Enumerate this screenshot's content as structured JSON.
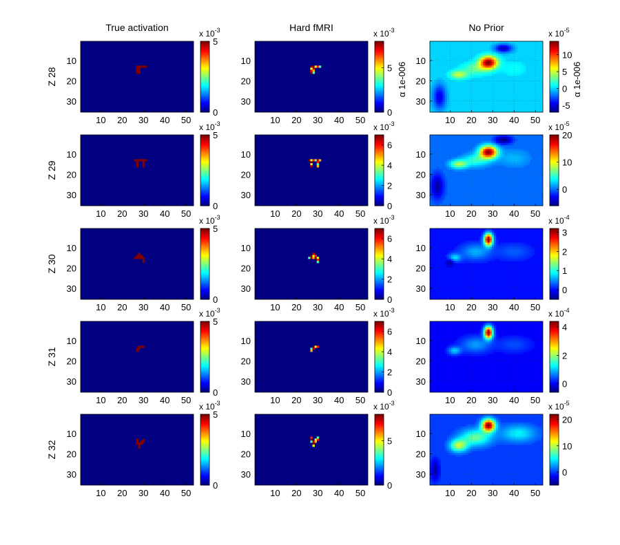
{
  "figure": {
    "background": "#ffffff",
    "colormap": "jet"
  },
  "chart_data": [
    {
      "type": "heatmap",
      "panel": "r0c0",
      "title": "True activation",
      "ylabel_row": "Z 28",
      "xticks": [
        10,
        20,
        30,
        40,
        50
      ],
      "yticks": [
        10,
        20,
        30
      ],
      "xlim": [
        0.5,
        53.5
      ],
      "ylim": [
        0.5,
        35.5
      ],
      "colorbar": {
        "ticks": [
          {
            "v": 0,
            "t": "0"
          },
          {
            "v": 5,
            "t": "5"
          }
        ],
        "exponent_base": "x 10",
        "exponent": "-3",
        "label": "",
        "cmin": 0,
        "cmax": 5
      },
      "blobs": [
        {
          "x": 28,
          "y": 13,
          "rx": 3,
          "ry": 3,
          "v": 5
        }
      ],
      "shape": "L"
    },
    {
      "type": "heatmap",
      "panel": "r0c1",
      "title": "Hard fMRI",
      "xticks": [
        10,
        20,
        30,
        40,
        50
      ],
      "yticks": [
        10,
        20,
        30
      ],
      "xlim": [
        0.5,
        53.5
      ],
      "ylim": [
        0.5,
        35.5
      ],
      "colorbar": {
        "ticks": [
          {
            "v": 0,
            "t": "0"
          },
          {
            "v": 5,
            "t": "5"
          }
        ],
        "exponent_base": "x 10",
        "exponent": "-3",
        "label": "α  1e-006",
        "cmin": 0,
        "cmax": 8
      },
      "blobs": [
        {
          "x": 28,
          "y": 13,
          "v": 6
        }
      ],
      "shape": "L"
    },
    {
      "type": "heatmap",
      "panel": "r0c2",
      "title": "No Prior",
      "xticks": [
        10,
        20,
        30,
        40,
        50
      ],
      "yticks": [
        10,
        20,
        30
      ],
      "xlim": [
        0.5,
        53.5
      ],
      "ylim": [
        0.5,
        35.5
      ],
      "colorbar": {
        "ticks": [
          {
            "v": -5,
            "t": "-5"
          },
          {
            "v": 0,
            "t": "0"
          },
          {
            "v": 5,
            "t": "5"
          },
          {
            "v": 10,
            "t": "10"
          }
        ],
        "exponent_base": "x 10",
        "exponent": "-5",
        "label": "α  1e-006",
        "cmin": -7,
        "cmax": 14
      },
      "smooth": true,
      "blobs": [
        {
          "x": 28,
          "y": 11,
          "rx": 4,
          "ry": 3,
          "v": 14
        },
        {
          "x": 14,
          "y": 17,
          "rx": 4,
          "ry": 2,
          "v": 5
        },
        {
          "x": 22,
          "y": 14,
          "rx": 6,
          "ry": 3,
          "v": 3
        },
        {
          "x": 40,
          "y": 14,
          "rx": 6,
          "ry": 4,
          "v": 1
        },
        {
          "x": 35,
          "y": 4,
          "rx": 4,
          "ry": 2,
          "v": -6
        },
        {
          "x": 5,
          "y": 28,
          "rx": 3,
          "ry": 6,
          "v": -5
        }
      ]
    },
    {
      "type": "heatmap",
      "panel": "r1c0",
      "ylabel_row": "Z 29",
      "xticks": [
        10,
        20,
        30,
        40,
        50
      ],
      "yticks": [
        10,
        20,
        30
      ],
      "xlim": [
        0.5,
        53.5
      ],
      "ylim": [
        0.5,
        35.5
      ],
      "colorbar": {
        "ticks": [
          {
            "v": 0,
            "t": "0"
          },
          {
            "v": 5,
            "t": "5"
          }
        ],
        "exponent_base": "x 10",
        "exponent": "-3",
        "label": "",
        "cmin": 0,
        "cmax": 5
      },
      "blobs": [
        {
          "x": 28,
          "y": 13,
          "v": 5
        }
      ],
      "shape": "pi"
    },
    {
      "type": "heatmap",
      "panel": "r1c1",
      "xticks": [
        10,
        20,
        30,
        40,
        50
      ],
      "yticks": [
        10,
        20,
        30
      ],
      "xlim": [
        0.5,
        53.5
      ],
      "ylim": [
        0.5,
        35.5
      ],
      "colorbar": {
        "ticks": [
          {
            "v": 0,
            "t": "0"
          },
          {
            "v": 2,
            "t": "2"
          },
          {
            "v": 4,
            "t": "4"
          },
          {
            "v": 6,
            "t": "6"
          }
        ],
        "exponent_base": "x 10",
        "exponent": "-3",
        "label": "",
        "cmin": 0,
        "cmax": 7
      },
      "blobs": [
        {
          "x": 28,
          "y": 13,
          "v": 6
        }
      ],
      "shape": "pi"
    },
    {
      "type": "heatmap",
      "panel": "r1c2",
      "xticks": [
        10,
        20,
        30,
        40,
        50
      ],
      "yticks": [
        10,
        20,
        30
      ],
      "xlim": [
        0.5,
        53.5
      ],
      "ylim": [
        0.5,
        35.5
      ],
      "colorbar": {
        "ticks": [
          {
            "v": 0,
            "t": "0"
          },
          {
            "v": 10,
            "t": "10"
          },
          {
            "v": 20,
            "t": "20"
          }
        ],
        "exponent_base": "x 10",
        "exponent": "-5",
        "label": "",
        "cmin": -6,
        "cmax": 20
      },
      "smooth": true,
      "blobs": [
        {
          "x": 28,
          "y": 9,
          "rx": 4,
          "ry": 3,
          "v": 20
        },
        {
          "x": 14,
          "y": 15,
          "rx": 4,
          "ry": 2,
          "v": 8
        },
        {
          "x": 22,
          "y": 13,
          "rx": 6,
          "ry": 3,
          "v": 5
        },
        {
          "x": 40,
          "y": 12,
          "rx": 7,
          "ry": 4,
          "v": 2
        },
        {
          "x": 35,
          "y": 3,
          "rx": 4,
          "ry": 2,
          "v": -6
        },
        {
          "x": 4,
          "y": 26,
          "rx": 3,
          "ry": 6,
          "v": -5
        }
      ]
    },
    {
      "type": "heatmap",
      "panel": "r2c0",
      "ylabel_row": "Z 30",
      "xticks": [
        10,
        20,
        30,
        40,
        50
      ],
      "yticks": [
        10,
        20,
        30
      ],
      "xlim": [
        0.5,
        53.5
      ],
      "ylim": [
        0.5,
        35.5
      ],
      "colorbar": {
        "ticks": [
          {
            "v": 0,
            "t": "0"
          },
          {
            "v": 5,
            "t": "5"
          }
        ],
        "exponent_base": "x 10",
        "exponent": "-3",
        "label": "",
        "cmin": 0,
        "cmax": 5
      },
      "blobs": [
        {
          "x": 28,
          "y": 14,
          "v": 5
        }
      ],
      "shape": "blob"
    },
    {
      "type": "heatmap",
      "panel": "r2c1",
      "xticks": [
        10,
        20,
        30,
        40,
        50
      ],
      "yticks": [
        10,
        20,
        30
      ],
      "xlim": [
        0.5,
        53.5
      ],
      "ylim": [
        0.5,
        35.5
      ],
      "colorbar": {
        "ticks": [
          {
            "v": 0,
            "t": "0"
          },
          {
            "v": 2,
            "t": "2"
          },
          {
            "v": 4,
            "t": "4"
          },
          {
            "v": 6,
            "t": "6"
          }
        ],
        "exponent_base": "x 10",
        "exponent": "-3",
        "label": "",
        "cmin": 0,
        "cmax": 7
      },
      "blobs": [
        {
          "x": 28,
          "y": 14,
          "v": 6
        }
      ],
      "shape": "blob"
    },
    {
      "type": "heatmap",
      "panel": "r2c2",
      "xticks": [
        10,
        20,
        30,
        40,
        50
      ],
      "yticks": [
        10,
        20,
        30
      ],
      "xlim": [
        0.5,
        53.5
      ],
      "ylim": [
        0.5,
        35.5
      ],
      "colorbar": {
        "ticks": [
          {
            "v": 0,
            "t": "0"
          },
          {
            "v": 1,
            "t": "1"
          },
          {
            "v": 2,
            "t": "2"
          },
          {
            "v": 3,
            "t": "3"
          }
        ],
        "exponent_base": "x 10",
        "exponent": "-4",
        "label": "",
        "cmin": -0.5,
        "cmax": 3.2
      },
      "smooth": true,
      "blobs": [
        {
          "x": 28,
          "y": 6,
          "rx": 2,
          "ry": 3,
          "v": 3.2
        },
        {
          "x": 12,
          "y": 15,
          "rx": 3,
          "ry": 2,
          "v": 0.8
        },
        {
          "x": 22,
          "y": 12,
          "rx": 7,
          "ry": 4,
          "v": 0.6
        },
        {
          "x": 40,
          "y": 12,
          "rx": 8,
          "ry": 4,
          "v": 0.3
        },
        {
          "x": 10,
          "y": 17,
          "rx": 2,
          "ry": 2,
          "v": -0.5
        }
      ]
    },
    {
      "type": "heatmap",
      "panel": "r3c0",
      "ylabel_row": "Z 31",
      "xticks": [
        10,
        20,
        30,
        40,
        50
      ],
      "yticks": [
        10,
        20,
        30
      ],
      "xlim": [
        0.5,
        53.5
      ],
      "ylim": [
        0.5,
        35.5
      ],
      "colorbar": {
        "ticks": [
          {
            "v": 0,
            "t": "0"
          },
          {
            "v": 5,
            "t": "5"
          }
        ],
        "exponent_base": "x 10",
        "exponent": "-3",
        "label": "",
        "cmin": 0,
        "cmax": 5
      },
      "blobs": [
        {
          "x": 28,
          "y": 13,
          "v": 5
        }
      ],
      "shape": "v"
    },
    {
      "type": "heatmap",
      "panel": "r3c1",
      "xticks": [
        10,
        20,
        30,
        40,
        50
      ],
      "yticks": [
        10,
        20,
        30
      ],
      "xlim": [
        0.5,
        53.5
      ],
      "ylim": [
        0.5,
        35.5
      ],
      "colorbar": {
        "ticks": [
          {
            "v": 0,
            "t": "0"
          },
          {
            "v": 2,
            "t": "2"
          },
          {
            "v": 4,
            "t": "4"
          },
          {
            "v": 6,
            "t": "6"
          }
        ],
        "exponent_base": "x 10",
        "exponent": "-3",
        "label": "",
        "cmin": 0,
        "cmax": 7
      },
      "blobs": [
        {
          "x": 28,
          "y": 13,
          "v": 6
        }
      ],
      "shape": "v"
    },
    {
      "type": "heatmap",
      "panel": "r3c2",
      "xticks": [
        10,
        20,
        30,
        40,
        50
      ],
      "yticks": [
        10,
        20,
        30
      ],
      "xlim": [
        0.5,
        53.5
      ],
      "ylim": [
        0.5,
        35.5
      ],
      "colorbar": {
        "ticks": [
          {
            "v": 0,
            "t": "0"
          },
          {
            "v": 2,
            "t": "2"
          },
          {
            "v": 4,
            "t": "4"
          }
        ],
        "exponent_base": "x 10",
        "exponent": "-4",
        "label": "",
        "cmin": -0.6,
        "cmax": 4.4
      },
      "smooth": true,
      "blobs": [
        {
          "x": 28,
          "y": 6,
          "rx": 2,
          "ry": 3,
          "v": 4.4
        },
        {
          "x": 12,
          "y": 15,
          "rx": 3,
          "ry": 2,
          "v": 1.0
        },
        {
          "x": 22,
          "y": 12,
          "rx": 7,
          "ry": 4,
          "v": 0.8
        },
        {
          "x": 40,
          "y": 12,
          "rx": 8,
          "ry": 4,
          "v": 0.4
        }
      ]
    },
    {
      "type": "heatmap",
      "panel": "r4c0",
      "ylabel_row": "Z 32",
      "xticks": [
        10,
        20,
        30,
        40,
        50
      ],
      "yticks": [
        10,
        20,
        30
      ],
      "xlim": [
        0.5,
        53.5
      ],
      "ylim": [
        0.5,
        35.5
      ],
      "colorbar": {
        "ticks": [
          {
            "v": 0,
            "t": "0"
          },
          {
            "v": 5,
            "t": "5"
          }
        ],
        "exponent_base": "x 10",
        "exponent": "-3",
        "label": "",
        "cmin": 0,
        "cmax": 5
      },
      "blobs": [
        {
          "x": 28,
          "y": 14,
          "v": 5
        }
      ],
      "shape": "y"
    },
    {
      "type": "heatmap",
      "panel": "r4c1",
      "xticks": [
        10,
        20,
        30,
        40,
        50
      ],
      "yticks": [
        10,
        20,
        30
      ],
      "xlim": [
        0.5,
        53.5
      ],
      "ylim": [
        0.5,
        35.5
      ],
      "colorbar": {
        "ticks": [
          {
            "v": 0,
            "t": "0"
          },
          {
            "v": 5,
            "t": "5"
          }
        ],
        "exponent_base": "x 10",
        "exponent": "-3",
        "label": "",
        "cmin": 0,
        "cmax": 8
      },
      "blobs": [
        {
          "x": 28,
          "y": 13,
          "v": 6
        }
      ],
      "shape": "y"
    },
    {
      "type": "heatmap",
      "panel": "r4c2",
      "xticks": [
        10,
        20,
        30,
        40,
        50
      ],
      "yticks": [
        10,
        20,
        30
      ],
      "xlim": [
        0.5,
        53.5
      ],
      "ylim": [
        0.5,
        35.5
      ],
      "colorbar": {
        "ticks": [
          {
            "v": 0,
            "t": "0"
          },
          {
            "v": 10,
            "t": "10"
          },
          {
            "v": 20,
            "t": "20"
          }
        ],
        "exponent_base": "x 10",
        "exponent": "-5",
        "label": "",
        "cmin": -5,
        "cmax": 22
      },
      "smooth": true,
      "blobs": [
        {
          "x": 28,
          "y": 6,
          "rx": 3,
          "ry": 3,
          "v": 22
        },
        {
          "x": 14,
          "y": 16,
          "rx": 4,
          "ry": 3,
          "v": 10
        },
        {
          "x": 22,
          "y": 12,
          "rx": 7,
          "ry": 4,
          "v": 8
        },
        {
          "x": 42,
          "y": 10,
          "rx": 8,
          "ry": 4,
          "v": 5
        },
        {
          "x": 3,
          "y": 28,
          "rx": 2,
          "ry": 5,
          "v": -4
        }
      ]
    }
  ]
}
